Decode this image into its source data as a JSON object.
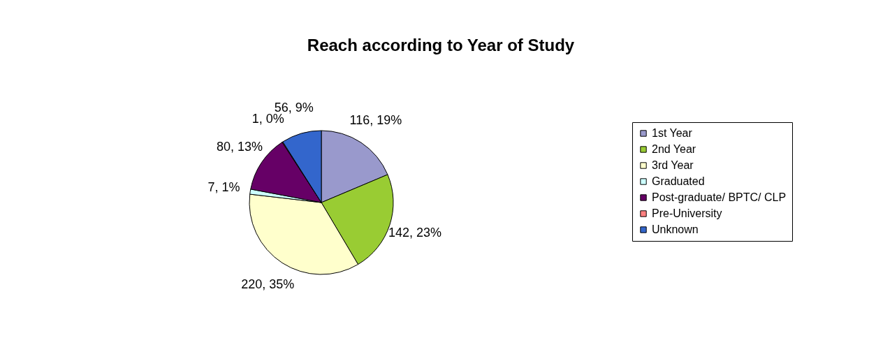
{
  "chart_data": {
    "type": "pie",
    "title": "Reach according to Year of Study",
    "categories": [
      "1st Year",
      "2nd Year",
      "3rd Year",
      "Graduated",
      "Post-graduate/ BPTC/ CLP",
      "Pre-University",
      "Unknown"
    ],
    "values": [
      116,
      142,
      220,
      7,
      80,
      1,
      56
    ],
    "value_labels": [
      "116, 19%",
      "142, 23%",
      "220, 35%",
      "7, 1%",
      "80, 13%",
      "1, 0%",
      "56, 9%"
    ],
    "colors": [
      "#9999cc",
      "#99cc33",
      "#ffffcc",
      "#ccffff",
      "#660066",
      "#ff8080",
      "#3366cc"
    ],
    "legend": "right"
  }
}
